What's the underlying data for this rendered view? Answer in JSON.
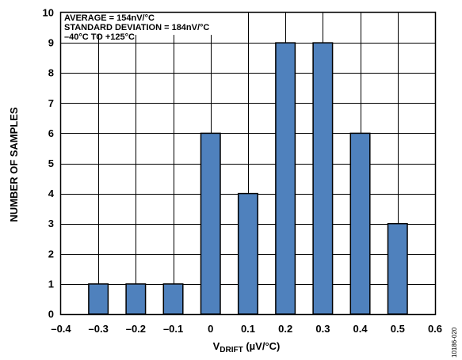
{
  "chart_data": {
    "type": "bar",
    "x_ticks": [
      "–0.4",
      "–0.3",
      "–0.2",
      "–0.1",
      "0",
      "0.1",
      "0.2",
      "0.3",
      "0.4",
      "0.5",
      "0.6"
    ],
    "x": [
      -0.3,
      -0.2,
      -0.1,
      0,
      0.1,
      0.2,
      0.3,
      0.4,
      0.5
    ],
    "values": [
      1,
      1,
      1,
      6,
      4,
      9,
      9,
      6,
      3
    ],
    "xlim": [
      -0.4,
      0.6
    ],
    "ylim": [
      0,
      10
    ],
    "y_ticks": [
      "0",
      "1",
      "2",
      "3",
      "4",
      "5",
      "6",
      "7",
      "8",
      "9",
      "10"
    ],
    "xlabel_main": "V",
    "xlabel_sub": "DRIFT",
    "xlabel_unit": " (µV/°C)",
    "ylabel": "NUMBER OF SAMPLES",
    "annotations": [
      "AVERAGE = 154nV/°C",
      "STANDARD DEVIATION = 184nV/°C",
      "–40°C TO +125°C"
    ],
    "grid": true,
    "bar_color": "#4f81bd",
    "bar_edge_color": "#000000",
    "legend": "none"
  },
  "figure_id": "10186-020"
}
